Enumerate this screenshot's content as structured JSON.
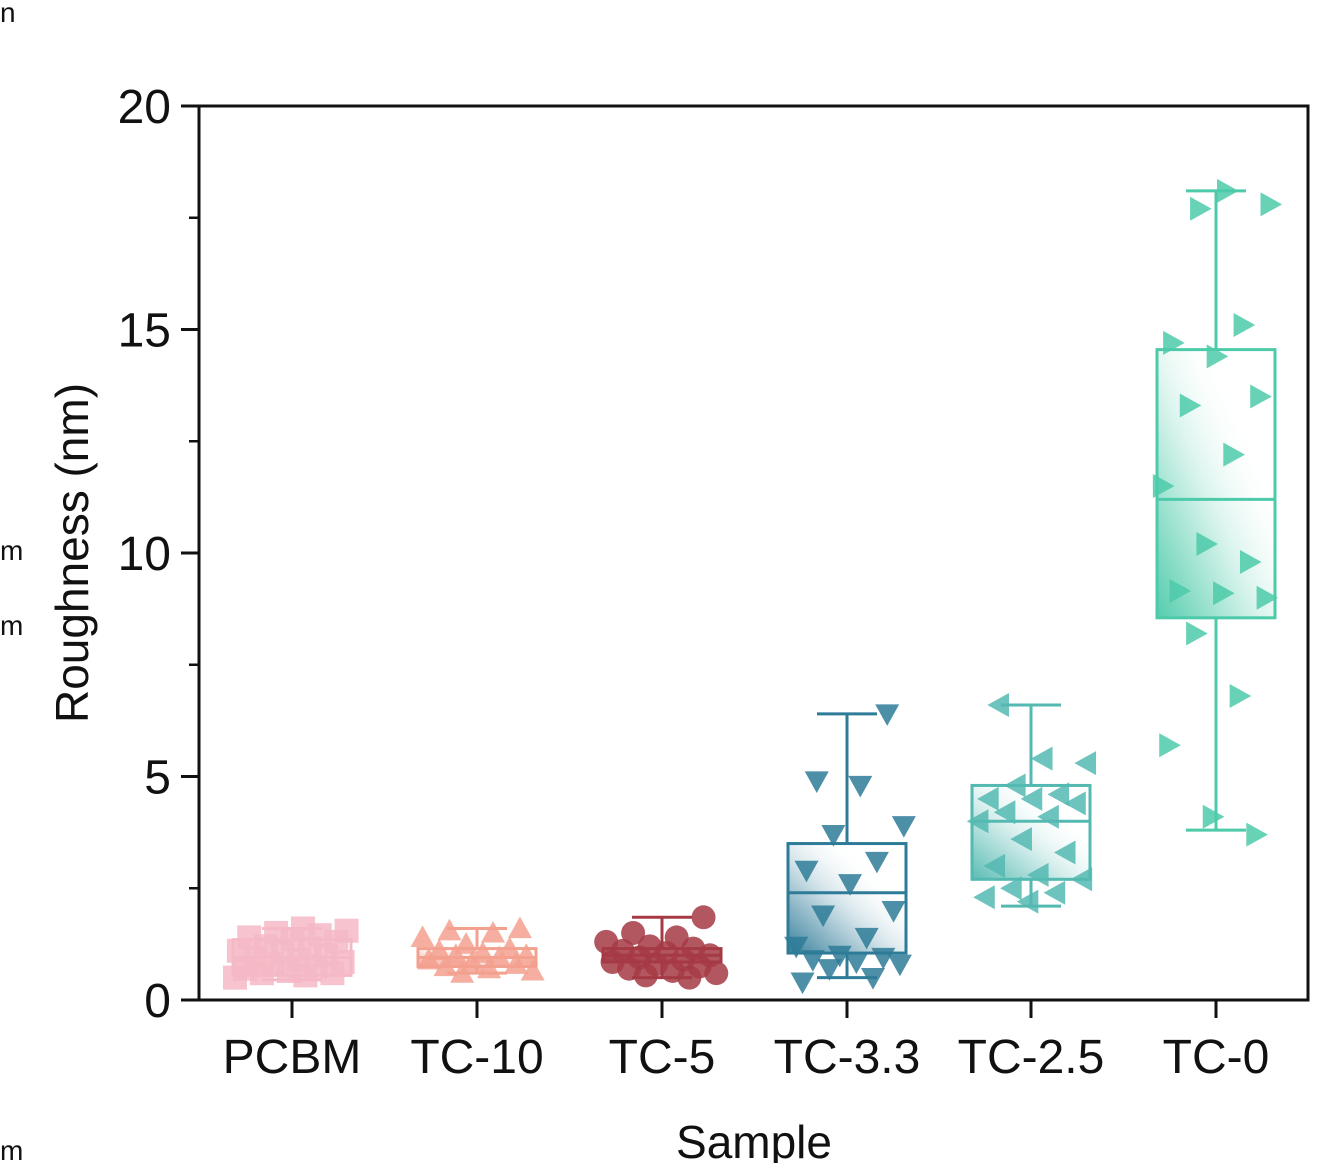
{
  "chart_data": {
    "type": "box",
    "title": "",
    "xlabel": "Sample",
    "ylabel": "Roughness (nm)",
    "ylim": [
      0,
      20
    ],
    "yticks": [
      0,
      5,
      10,
      15,
      20
    ],
    "ytick_labels": [
      "0",
      "5",
      "10",
      "15",
      "20"
    ],
    "grid": false,
    "categories": [
      "PCBM",
      "TC-10",
      "TC-5",
      "TC-3.3",
      "TC-2.5",
      "TC-0"
    ],
    "series": [
      {
        "name": "PCBM",
        "marker": "square",
        "color": "#f4b9c6",
        "box": {
          "whisker_low": 0.45,
          "q1": 0.55,
          "median": 0.95,
          "q3": 1.35,
          "whisker_high": 1.6
        },
        "points": [
          0.5,
          0.55,
          0.6,
          0.6,
          0.65,
          0.7,
          0.75,
          0.8,
          0.85,
          0.9,
          0.95,
          1.0,
          1.05,
          1.1,
          1.15,
          1.2,
          1.3,
          1.35,
          1.4,
          1.45,
          1.5,
          1.55,
          1.6
        ]
      },
      {
        "name": "TC-10",
        "marker": "triangle-up",
        "color": "#f3a08f",
        "box": {
          "whisker_low": 0.6,
          "q1": 0.75,
          "median": 0.95,
          "q3": 1.15,
          "whisker_high": 1.6
        },
        "points": [
          0.6,
          0.65,
          0.7,
          0.75,
          0.8,
          0.85,
          0.9,
          0.95,
          1.0,
          1.0,
          1.05,
          1.1,
          1.15,
          1.25,
          1.4,
          1.5,
          1.55,
          1.6
        ]
      },
      {
        "name": "TC-5",
        "marker": "circle",
        "color": "#a53a44",
        "box": {
          "whisker_low": 0.5,
          "q1": 0.85,
          "median": 1.0,
          "q3": 1.15,
          "whisker_high": 1.85
        },
        "points": [
          0.5,
          0.55,
          0.6,
          0.65,
          0.7,
          0.75,
          0.8,
          0.85,
          0.9,
          0.95,
          1.0,
          1.05,
          1.1,
          1.15,
          1.2,
          1.3,
          1.4,
          1.5,
          1.85
        ]
      },
      {
        "name": "TC-3.3",
        "marker": "triangle-down",
        "color": "#2e7b98",
        "box": {
          "whisker_low": 0.5,
          "q1": 1.05,
          "median": 2.4,
          "q3": 3.5,
          "whisker_high": 6.4
        },
        "points": [
          0.4,
          0.5,
          0.7,
          0.8,
          0.85,
          0.9,
          0.95,
          1.0,
          1.2,
          1.4,
          1.9,
          2.0,
          2.6,
          2.9,
          3.1,
          3.7,
          3.9,
          4.8,
          4.9,
          6.4
        ]
      },
      {
        "name": "TC-2.5",
        "marker": "triangle-left",
        "color": "#53b9b1",
        "box": {
          "whisker_low": 2.1,
          "q1": 2.7,
          "median": 4.0,
          "q3": 4.8,
          "whisker_high": 6.6
        },
        "points": [
          2.2,
          2.3,
          2.4,
          2.5,
          2.7,
          2.8,
          3.0,
          3.3,
          3.6,
          4.0,
          4.1,
          4.2,
          4.4,
          4.5,
          4.5,
          4.6,
          4.8,
          5.3,
          5.4,
          6.6
        ]
      },
      {
        "name": "TC-0",
        "marker": "triangle-right",
        "color": "#4ccaa9",
        "box": {
          "whisker_low": 3.8,
          "q1": 8.55,
          "median": 11.2,
          "q3": 14.55,
          "whisker_high": 18.1
        },
        "points": [
          3.7,
          4.1,
          5.7,
          6.8,
          8.2,
          9.0,
          9.1,
          9.15,
          9.8,
          10.2,
          11.5,
          12.2,
          13.3,
          13.5,
          14.4,
          14.7,
          15.1,
          17.7,
          17.8,
          18.1
        ]
      }
    ]
  },
  "edge_fragments": [
    "n",
    "m",
    "m",
    "m"
  ]
}
